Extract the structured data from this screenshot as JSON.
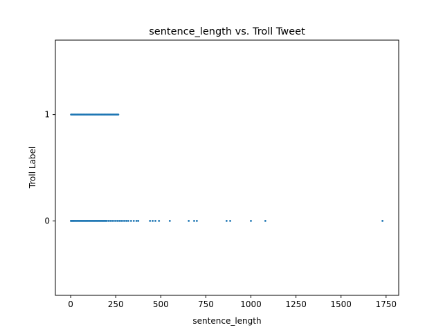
{
  "chart_data": {
    "type": "scatter",
    "title": "sentence_length vs. Troll Tweet",
    "xlabel": "sentence_length",
    "ylabel": "Troll Label",
    "xlim": [
      -85,
      1820
    ],
    "ylim": [
      -0.7,
      1.7
    ],
    "xticks": [
      0,
      250,
      500,
      750,
      1000,
      1250,
      1500,
      1750
    ],
    "xtick_labels": [
      "0",
      "250",
      "500",
      "750",
      "1000",
      "1250",
      "1500",
      "1750"
    ],
    "yticks": [
      0,
      1
    ],
    "ytick_labels": [
      "0",
      "1"
    ],
    "grid": false,
    "color": "#1f77b4",
    "series": [
      {
        "label_value": 1,
        "x": [
          2,
          5,
          10,
          15,
          20,
          25,
          30,
          35,
          40,
          45,
          50,
          55,
          60,
          65,
          70,
          75,
          80,
          85,
          90,
          95,
          100,
          105,
          110,
          115,
          120,
          125,
          130,
          135,
          140,
          145,
          150,
          155,
          160,
          165,
          170,
          175,
          180,
          185,
          190,
          195,
          200,
          205,
          210,
          215,
          220,
          225,
          230,
          235,
          240,
          245,
          250,
          255,
          260,
          264
        ],
        "y": [
          1,
          1,
          1,
          1,
          1,
          1,
          1,
          1,
          1,
          1,
          1,
          1,
          1,
          1,
          1,
          1,
          1,
          1,
          1,
          1,
          1,
          1,
          1,
          1,
          1,
          1,
          1,
          1,
          1,
          1,
          1,
          1,
          1,
          1,
          1,
          1,
          1,
          1,
          1,
          1,
          1,
          1,
          1,
          1,
          1,
          1,
          1,
          1,
          1,
          1,
          1,
          1,
          1,
          1
        ]
      },
      {
        "label_value": 0,
        "x": [
          1,
          4,
          8,
          12,
          16,
          20,
          25,
          30,
          35,
          40,
          45,
          50,
          55,
          60,
          65,
          70,
          75,
          80,
          85,
          90,
          95,
          100,
          105,
          110,
          115,
          120,
          125,
          130,
          135,
          140,
          145,
          150,
          155,
          160,
          165,
          170,
          175,
          180,
          185,
          190,
          195,
          200,
          210,
          220,
          230,
          240,
          250,
          260,
          270,
          280,
          290,
          300,
          310,
          320,
          335,
          350,
          365,
          375,
          440,
          455,
          470,
          490,
          550,
          655,
          685,
          700,
          865,
          885,
          1000,
          1080,
          1730
        ],
        "y": [
          0,
          0,
          0,
          0,
          0,
          0,
          0,
          0,
          0,
          0,
          0,
          0,
          0,
          0,
          0,
          0,
          0,
          0,
          0,
          0,
          0,
          0,
          0,
          0,
          0,
          0,
          0,
          0,
          0,
          0,
          0,
          0,
          0,
          0,
          0,
          0,
          0,
          0,
          0,
          0,
          0,
          0,
          0,
          0,
          0,
          0,
          0,
          0,
          0,
          0,
          0,
          0,
          0,
          0,
          0,
          0,
          0,
          0,
          0,
          0,
          0,
          0,
          0,
          0,
          0,
          0,
          0,
          0,
          0,
          0,
          0
        ]
      }
    ]
  }
}
